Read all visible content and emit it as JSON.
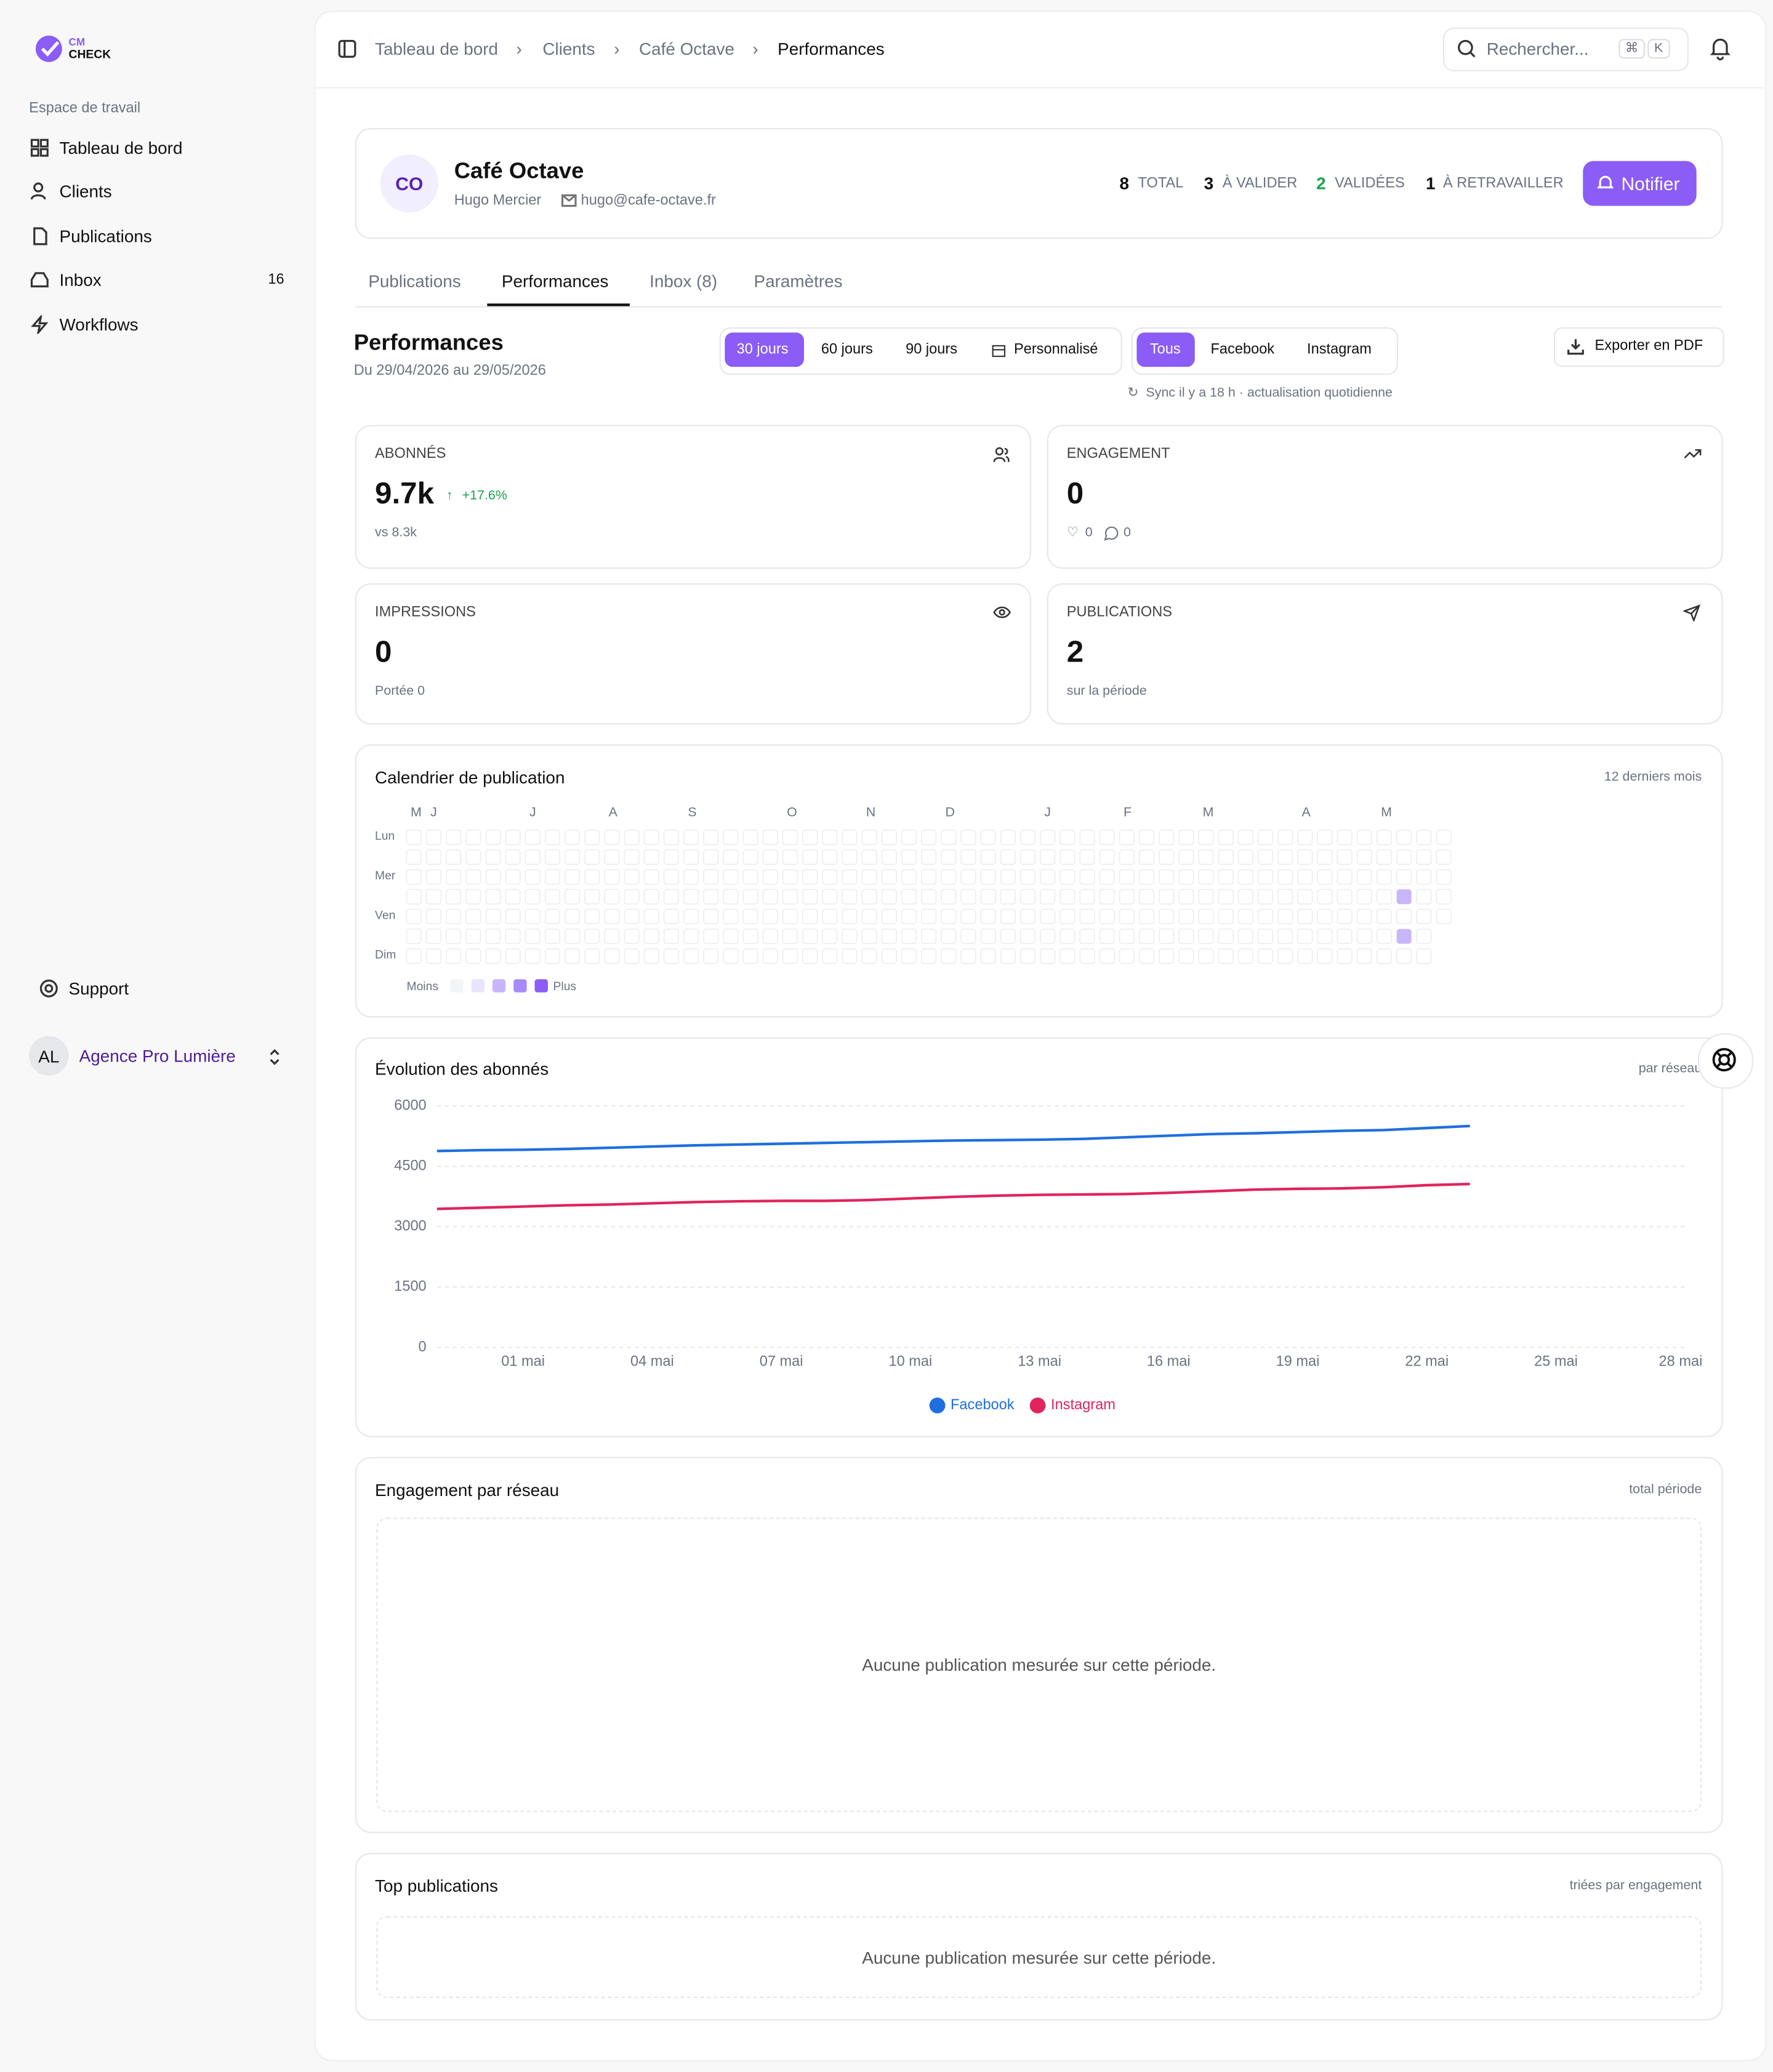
{
  "sidebar": {
    "brand": [
      "CM",
      "CHECK"
    ],
    "section": "Espace de travail",
    "nav": [
      {
        "label": "Tableau de bord"
      },
      {
        "label": "Clients"
      },
      {
        "label": "Publications"
      },
      {
        "label": "Inbox",
        "badge": "16"
      },
      {
        "label": "Workflows"
      }
    ],
    "support": "Support",
    "account": {
      "initials": "AL",
      "name": "Agence Pro Lumière"
    }
  },
  "header": {
    "breadcrumb": [
      "Tableau de bord",
      "Clients",
      "Café Octave",
      "Performances"
    ],
    "search": "Rechercher...",
    "shortcut": [
      "⌘",
      "K"
    ]
  },
  "client": {
    "initials": "CO",
    "name": "Café Octave",
    "contact": "Hugo Mercier",
    "email": "hugo@cafe-octave.fr",
    "stats": [
      {
        "value": "8",
        "label": "TOTAL"
      },
      {
        "value": "3",
        "label": "À VALIDER"
      },
      {
        "value": "2",
        "label": "VALIDÉES"
      },
      {
        "value": "1",
        "label": "À RETRAVAILLER"
      }
    ],
    "button": "Notifier"
  },
  "tabs": [
    "Publications",
    "Performances",
    "Inbox (8)",
    "Paramètres"
  ],
  "performance": {
    "title": "Performances",
    "range": "Du 29/04/2026 au 29/05/2026",
    "periods": [
      "30 jours",
      "60 jours",
      "90 jours",
      "Personnalisé"
    ],
    "networks": [
      "Tous",
      "Facebook",
      "Instagram"
    ],
    "sync": "Sync il y a 18 h · actualisation quotidienne",
    "export": "Exporter en PDF"
  },
  "kpis": [
    {
      "label": "ABONNÉS",
      "value": "9.7k",
      "delta": "+17.6%",
      "sub": "vs 8.3k"
    },
    {
      "label": "ENGAGEMENT",
      "value": "0",
      "likes": "0",
      "comments": "0"
    },
    {
      "label": "IMPRESSIONS",
      "value": "0",
      "sub": "Portée 0"
    },
    {
      "label": "PUBLICATIONS",
      "value": "2",
      "sub": "sur la période"
    }
  ],
  "calendar": {
    "title": "Calendrier de publication",
    "note": "12 derniers mois",
    "months": [
      {
        "label": "M",
        "week": 0
      },
      {
        "label": "J",
        "week": 1
      },
      {
        "label": "J",
        "week": 6
      },
      {
        "label": "A",
        "week": 10
      },
      {
        "label": "S",
        "week": 14
      },
      {
        "label": "O",
        "week": 19
      },
      {
        "label": "N",
        "week": 23
      },
      {
        "label": "D",
        "week": 27
      },
      {
        "label": "J",
        "week": 32
      },
      {
        "label": "F",
        "week": 36
      },
      {
        "label": "M",
        "week": 40
      },
      {
        "label": "A",
        "week": 45
      },
      {
        "label": "M",
        "week": 49
      }
    ],
    "days": [
      {
        "label": "Lun",
        "row": 0
      },
      {
        "label": "Mer",
        "row": 2
      },
      {
        "label": "Ven",
        "row": 4
      },
      {
        "label": "Dim",
        "row": 6
      }
    ],
    "weeks": 53,
    "days_in_last_week": 5,
    "levels": [
      "#f3f4f6",
      "#e9e3fd",
      "#c9b5fb",
      "#a78bfa",
      "#8b5cf6"
    ],
    "active": [
      {
        "week": 50,
        "day": 3,
        "level": 2
      },
      {
        "week": 50,
        "day": 5,
        "level": 2
      }
    ],
    "legend": [
      "Moins",
      "Plus"
    ]
  },
  "chart_data": {
    "type": "line",
    "title": "Évolution des abonnés",
    "note": "par réseau",
    "categories": [
      null,
      null,
      "01 mai",
      null,
      null,
      "04 mai",
      null,
      null,
      "07 mai",
      null,
      null,
      "10 mai",
      null,
      null,
      "13 mai",
      null,
      null,
      "16 mai",
      null,
      null,
      "19 mai",
      null,
      null,
      "22 mai",
      null,
      null,
      "25 mai",
      null,
      null,
      "28 mai"
    ],
    "series": [
      {
        "name": "Facebook",
        "color": "#1f6fde",
        "values": [
          4880,
          4900,
          4910,
          4930,
          4960,
          4990,
          5020,
          5040,
          5060,
          5080,
          5100,
          5120,
          5140,
          5150,
          5160,
          5180,
          5220,
          5260,
          5300,
          5320,
          5350,
          5380,
          5400,
          5450,
          5500,
          null,
          null,
          null,
          null,
          null
        ]
      },
      {
        "name": "Instagram",
        "color": "#e0245e",
        "values": [
          3440,
          3470,
          3500,
          3530,
          3550,
          3580,
          3610,
          3630,
          3640,
          3640,
          3660,
          3700,
          3740,
          3770,
          3790,
          3800,
          3810,
          3840,
          3880,
          3920,
          3940,
          3950,
          3980,
          4030,
          4060,
          null,
          null,
          null,
          null,
          null
        ]
      }
    ],
    "ylim": [
      0,
      6000
    ],
    "yticks": [
      0,
      1500,
      3000,
      4500,
      6000
    ],
    "grid": true
  },
  "engagement": {
    "title": "Engagement par réseau",
    "note": "total période",
    "empty": "Aucune publication mesurée sur cette période."
  },
  "top": {
    "title": "Top publications",
    "note": "triées par engagement",
    "empty": "Aucune publication mesurée sur cette période."
  }
}
